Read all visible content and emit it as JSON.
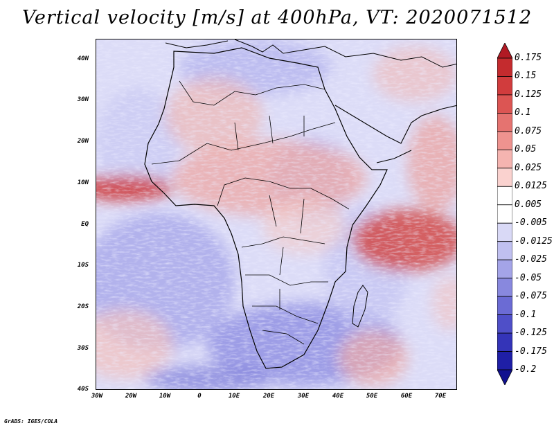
{
  "title": "Vertical velocity [m/s] at 400hPa, VT: 2020071512",
  "credit": "GrADS: IGES/COLA",
  "map": {
    "region": "Africa",
    "variable": "Vertical velocity",
    "units": "m/s",
    "level": "400hPa",
    "valid_time": "2020071512",
    "lon_range": [
      -30,
      75
    ],
    "lat_range": [
      -40,
      45
    ]
  },
  "lat_labels": [
    "40N",
    "30N",
    "20N",
    "10N",
    "EQ",
    "10S",
    "20S",
    "30S",
    "40S"
  ],
  "lon_labels": [
    "30W",
    "20W",
    "10W",
    "0",
    "10E",
    "20E",
    "30E",
    "40E",
    "50E",
    "60E",
    "70E"
  ],
  "colorbar": {
    "labels": [
      "0.175",
      "0.15",
      "0.125",
      "0.1",
      "0.075",
      "0.05",
      "0.025",
      "0.0125",
      "0.005",
      "-0.005",
      "-0.0125",
      "-0.025",
      "-0.05",
      "-0.075",
      "-0.1",
      "-0.125",
      "-0.175",
      "-0.2"
    ],
    "colors": [
      "#b11a24",
      "#c42b2e",
      "#d13c3d",
      "#dc5553",
      "#e57370",
      "#ee938f",
      "#f5b4b0",
      "#fad2cf",
      "#ffffff",
      "#ffffff",
      "#d9d9f6",
      "#c0c0f0",
      "#a4a4e8",
      "#8888de",
      "#6b6bd4",
      "#4f4fc8",
      "#3434b8",
      "#1f1fa6",
      "#10108f"
    ]
  }
}
